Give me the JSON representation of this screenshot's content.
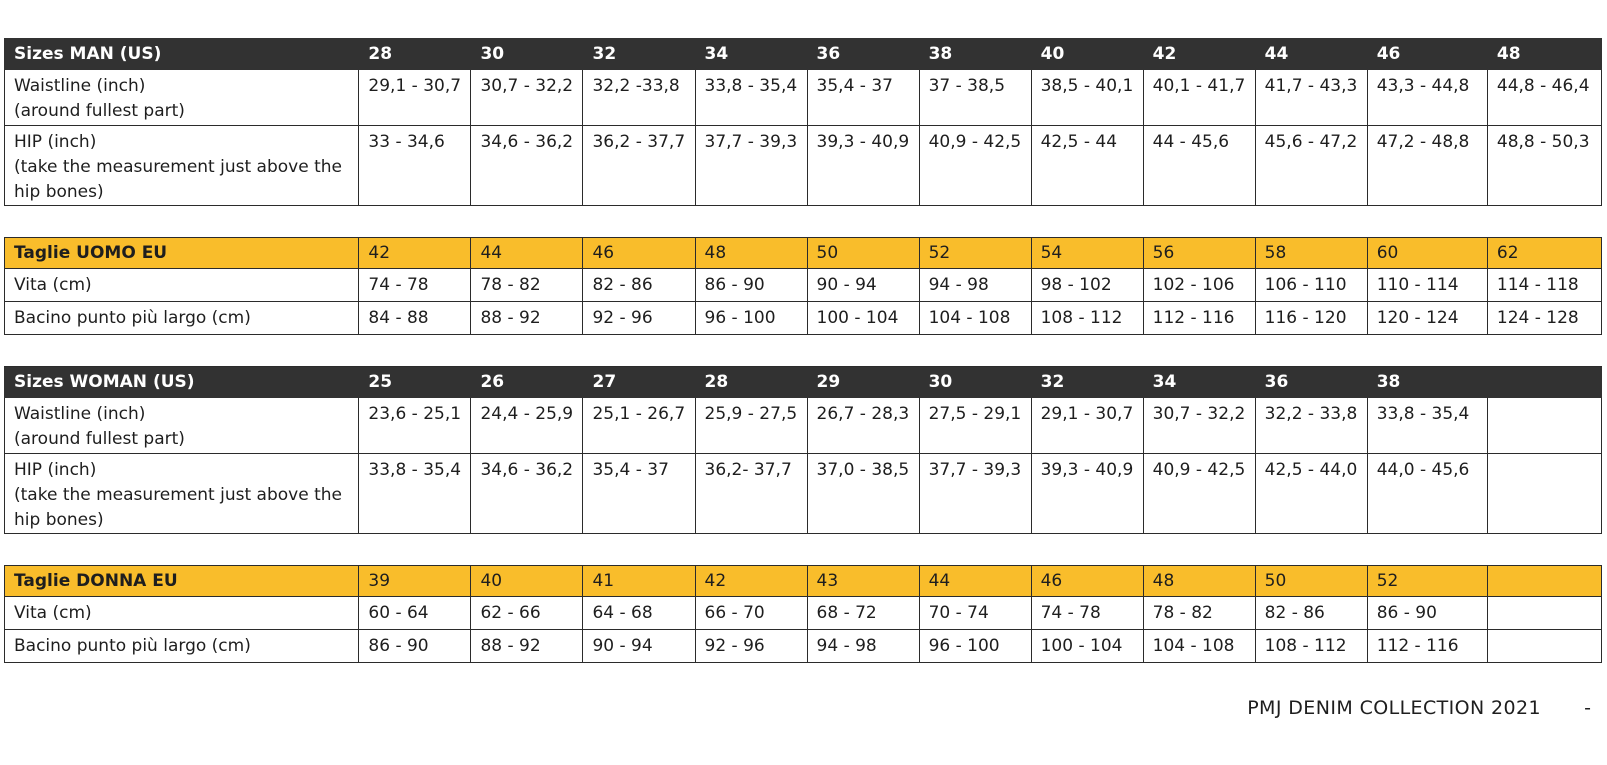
{
  "sections": [
    {
      "header": [
        "Sizes  MAN  (US)",
        "28",
        "30",
        "32",
        "34",
        "36",
        "38",
        "40",
        "42",
        "44",
        "46",
        "48"
      ],
      "header_style": "dark",
      "rows": [
        [
          "Waistline (inch)\n(around fullest part)",
          "29,1 - 30,7",
          "30,7 - 32,2",
          "32,2 -33,8",
          "33,8 - 35,4",
          "35,4 - 37",
          "37 - 38,5",
          "38,5 - 40,1",
          "40,1 - 41,7",
          "41,7 - 43,3",
          "43,3 - 44,8",
          "44,8 - 46,4"
        ],
        [
          "HIP (inch)\n(take the measurement just above the hip bones)",
          "33 - 34,6",
          "34,6 - 36,2",
          "36,2 - 37,7",
          "37,7 - 39,3",
          "39,3 - 40,9",
          "40,9 - 42,5",
          "42,5 - 44",
          "44 - 45,6",
          "45,6 - 47,2",
          "47,2 - 48,8",
          "48,8 - 50,3"
        ]
      ]
    },
    {
      "header": [
        "Taglie UOMO EU",
        "42",
        "44",
        "46",
        "48",
        "50",
        "52",
        "54",
        "56",
        "58",
        "60",
        "62"
      ],
      "header_style": "yellow",
      "rows": [
        [
          "Vita (cm)",
          "74 - 78",
          "78 - 82",
          "82 - 86",
          "86 - 90",
          "90 - 94",
          "94 - 98",
          "98 - 102",
          "102 - 106",
          "106 - 110",
          "110 - 114",
          "114 - 118"
        ],
        [
          "Bacino punto più largo (cm)",
          "84 - 88",
          "88 - 92",
          "92 - 96",
          "96 - 100",
          "100 - 104",
          "104 - 108",
          "108 - 112",
          "112 - 116",
          "116 - 120",
          "120 - 124",
          "124 - 128"
        ]
      ]
    },
    {
      "header": [
        "Sizes  WOMAN  (US)",
        "25",
        "26",
        "27",
        "28",
        "29",
        "30",
        "32",
        "34",
        "36",
        "38",
        ""
      ],
      "header_style": "dark",
      "rows": [
        [
          "Waistline (inch)\n(around fullest part)",
          "23,6 - 25,1",
          "24,4 - 25,9",
          "25,1 - 26,7",
          "25,9 - 27,5",
          "26,7 - 28,3",
          "27,5 - 29,1",
          "29,1 - 30,7",
          "30,7 - 32,2",
          "32,2 - 33,8",
          "33,8 - 35,4",
          ""
        ],
        [
          "HIP (inch)\n(take the measurement just above the hip bones)",
          "33,8 - 35,4",
          "34,6 - 36,2",
          "35,4 - 37",
          "36,2- 37,7",
          "37,0 - 38,5",
          "37,7 - 39,3",
          "39,3 - 40,9",
          "40,9 - 42,5",
          "42,5 - 44,0",
          "44,0  - 45,6",
          ""
        ]
      ]
    },
    {
      "header": [
        "Taglie DONNA EU",
        "39",
        "40",
        "41",
        "42",
        "43",
        "44",
        "46",
        "48",
        "50",
        "52",
        ""
      ],
      "header_style": "yellow",
      "rows": [
        [
          "Vita (cm)",
          "60 - 64",
          "62 - 66",
          "64 - 68",
          "66 - 70",
          "68 - 72",
          "70 - 74",
          "74 - 78",
          "78 - 82",
          "82 - 86",
          "86 - 90",
          ""
        ],
        [
          "Bacino punto più largo (cm)",
          "86 - 90",
          "88 - 92",
          "90 - 94",
          "92 - 96",
          "94 - 98",
          "96 - 100",
          "100 - 104",
          "104 - 108",
          "108 - 112",
          "112 - 116",
          ""
        ]
      ]
    }
  ],
  "footer": {
    "text": "PMJ DENIM COLLECTION 2021",
    "dash": "-"
  },
  "colors": {
    "dark_header": "#323232",
    "yellow_header": "#f9bd2b"
  }
}
